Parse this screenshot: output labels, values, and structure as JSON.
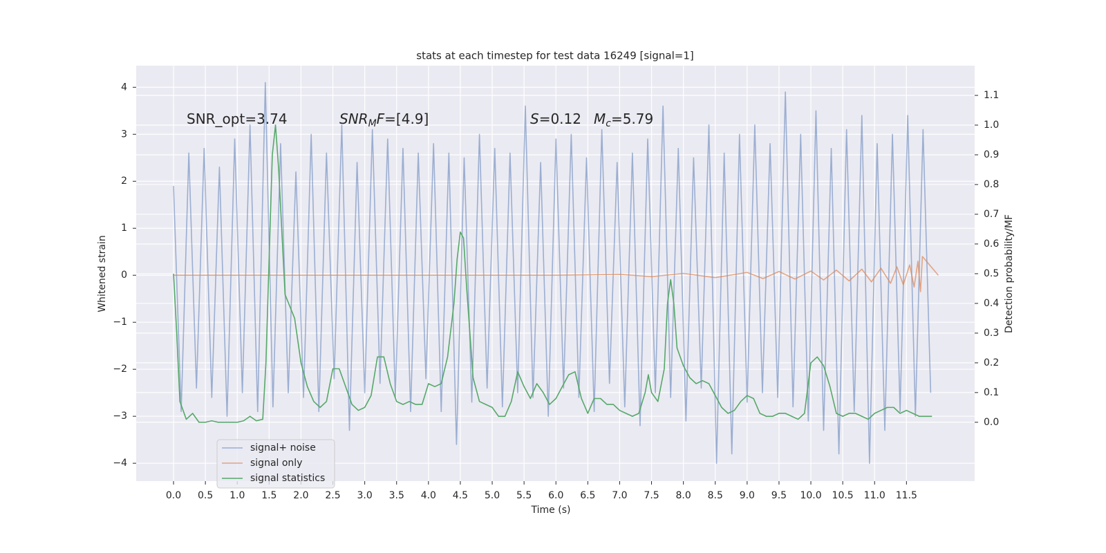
{
  "chart_data": {
    "type": "line",
    "title": "stats at each timestep for test data 16249 [signal=1]",
    "xlabel": "Time (s)",
    "ylabel": "Whitened strain",
    "y2label": "Detection probability/MF",
    "xlim": [
      -0.586,
      12.57
    ],
    "ylim": [
      -4.38,
      4.46
    ],
    "y2lim": [
      -0.198,
      1.2
    ],
    "xticks": [
      {
        "value": 0,
        "label": "0.0"
      },
      0.5,
      {
        "value": 1,
        "label": "1.0"
      },
      1.5,
      {
        "value": 2,
        "label": "2.0"
      },
      2.5,
      {
        "value": 3,
        "label": "3.0"
      },
      3.5,
      {
        "value": 4,
        "label": "4.0"
      },
      4.5,
      {
        "value": 5,
        "label": "5.0"
      },
      5.5,
      {
        "value": 6,
        "label": "6.0"
      },
      6.5,
      {
        "value": 7,
        "label": "7.0"
      },
      7.5,
      {
        "value": 8,
        "label": "8.0"
      },
      8.5,
      {
        "value": 9,
        "label": "9.0"
      },
      9.5,
      {
        "value": 10,
        "label": "10.0"
      },
      10.5,
      {
        "value": 11,
        "label": "11.0"
      },
      11.5
    ],
    "yticks": [
      {
        "value": -4,
        "label": "−4"
      },
      {
        "value": -3,
        "label": "−3"
      },
      {
        "value": -2,
        "label": "−2"
      },
      {
        "value": -1,
        "label": "−1"
      },
      0,
      1,
      2,
      3,
      4
    ],
    "y2ticks": [
      {
        "value": 0,
        "label": "0.0"
      },
      0.1,
      0.2,
      0.3,
      0.4,
      0.5,
      0.6,
      0.7,
      0.8,
      0.9,
      {
        "value": 1,
        "label": "1.0"
      },
      1.1
    ],
    "grid": true,
    "legend": "lower left",
    "annotations": [
      [
        {
          "text": "SNR_opt=3.74"
        }
      ],
      [
        {
          "text": "SNR",
          "style": "italic"
        },
        {
          "text": "M",
          "style": "sub"
        },
        {
          "text": "F",
          "style": "italic"
        },
        {
          "text": "=[4.9]"
        }
      ],
      [
        {
          "text": "S",
          "style": "italic"
        },
        {
          "text": "=0.12"
        }
      ],
      [
        {
          "text": "M",
          "style": "italic"
        },
        {
          "text": "c",
          "style": "sub"
        },
        {
          "text": "=5.79"
        }
      ]
    ],
    "series": [
      {
        "name": "signal+ noise",
        "color": "#4c72b0",
        "opacity": 0.5,
        "x": [
          0,
          0.12,
          0.24,
          0.36,
          0.48,
          0.6,
          0.72,
          0.84,
          0.96,
          1.08,
          1.2,
          1.32,
          1.44,
          1.56,
          1.68,
          1.8,
          1.92,
          2.04,
          2.16,
          2.28,
          2.4,
          2.52,
          2.64,
          2.76,
          2.88,
          3.0,
          3.12,
          3.24,
          3.36,
          3.48,
          3.6,
          3.72,
          3.84,
          3.96,
          4.08,
          4.2,
          4.32,
          4.44,
          4.56,
          4.68,
          4.8,
          4.92,
          5.04,
          5.16,
          5.28,
          5.4,
          5.52,
          5.64,
          5.76,
          5.88,
          6.0,
          6.12,
          6.24,
          6.36,
          6.48,
          6.6,
          6.72,
          6.84,
          6.96,
          7.08,
          7.2,
          7.32,
          7.44,
          7.56,
          7.68,
          7.8,
          7.92,
          8.04,
          8.16,
          8.28,
          8.4,
          8.52,
          8.64,
          8.76,
          8.88,
          9.0,
          9.12,
          9.24,
          9.36,
          9.48,
          9.6,
          9.72,
          9.84,
          9.96,
          10.08,
          10.2,
          10.32,
          10.44,
          10.56,
          10.68,
          10.8,
          10.92,
          11.04,
          11.16,
          11.28,
          11.4,
          11.52,
          11.64,
          11.76,
          11.88
        ],
        "values": [
          1.9,
          -2.9,
          2.6,
          -2.4,
          2.7,
          -2.6,
          2.3,
          -3.0,
          2.9,
          -2.5,
          3.2,
          -2.9,
          4.1,
          -2.8,
          2.8,
          -2.5,
          2.2,
          -2.6,
          3.0,
          -2.9,
          2.6,
          -2.2,
          3.2,
          -3.3,
          2.4,
          -2.5,
          3.1,
          -2.3,
          2.9,
          -2.6,
          2.7,
          -2.9,
          2.6,
          -2.2,
          2.8,
          -2.9,
          2.6,
          -3.6,
          2.5,
          -2.7,
          3.0,
          -2.4,
          2.7,
          -2.8,
          2.6,
          -2.5,
          3.6,
          -2.6,
          2.4,
          -3.0,
          2.9,
          -2.4,
          3.0,
          -2.6,
          2.5,
          -2.9,
          3.1,
          -2.3,
          2.4,
          -2.8,
          2.6,
          -3.2,
          2.9,
          -2.5,
          3.6,
          -2.6,
          2.7,
          -3.1,
          2.5,
          -2.4,
          3.2,
          -4.0,
          2.6,
          -3.8,
          3.0,
          -2.7,
          3.2,
          -2.5,
          2.8,
          -2.6,
          3.9,
          -2.8,
          3.0,
          -3.1,
          3.5,
          -3.3,
          2.7,
          -3.8,
          3.1,
          -2.9,
          3.4,
          -4.0,
          2.8,
          -3.3,
          3.0,
          -2.9,
          3.4,
          -3.0,
          3.1,
          -2.5
        ]
      },
      {
        "name": "signal only",
        "color": "#dd8452",
        "opacity": 0.7,
        "x": [
          0,
          6.0,
          7.0,
          7.5,
          8.0,
          8.5,
          9.0,
          9.25,
          9.5,
          9.75,
          10.0,
          10.2,
          10.4,
          10.6,
          10.8,
          10.95,
          11.1,
          11.25,
          11.35,
          11.45,
          11.55,
          11.62,
          11.68,
          11.72,
          11.75,
          12.0
        ],
        "values": [
          0,
          0,
          0.02,
          -0.03,
          0.04,
          -0.05,
          0.06,
          -0.07,
          0.08,
          -0.08,
          0.09,
          -0.1,
          0.11,
          -0.12,
          0.13,
          -0.14,
          0.15,
          -0.17,
          0.18,
          -0.2,
          0.22,
          -0.25,
          0.3,
          -0.35,
          0.4,
          0
        ]
      },
      {
        "name": "signal statistics",
        "color": "#55a868",
        "axis": "y2",
        "x": [
          0,
          0.05,
          0.1,
          0.2,
          0.3,
          0.4,
          0.5,
          0.6,
          0.7,
          0.8,
          0.9,
          1.0,
          1.1,
          1.2,
          1.3,
          1.4,
          1.45,
          1.55,
          1.6,
          1.65,
          1.75,
          1.9,
          2.0,
          2.1,
          2.2,
          2.3,
          2.4,
          2.5,
          2.6,
          2.7,
          2.8,
          2.9,
          3.0,
          3.1,
          3.2,
          3.3,
          3.4,
          3.5,
          3.6,
          3.7,
          3.8,
          3.9,
          4.0,
          4.1,
          4.2,
          4.3,
          4.4,
          4.45,
          4.5,
          4.55,
          4.6,
          4.7,
          4.8,
          4.9,
          5.0,
          5.1,
          5.2,
          5.3,
          5.4,
          5.5,
          5.6,
          5.7,
          5.8,
          5.9,
          6.0,
          6.1,
          6.2,
          6.3,
          6.4,
          6.5,
          6.6,
          6.7,
          6.8,
          6.9,
          7.0,
          7.1,
          7.2,
          7.3,
          7.4,
          7.45,
          7.5,
          7.6,
          7.7,
          7.75,
          7.8,
          7.85,
          7.9,
          8.0,
          8.1,
          8.2,
          8.3,
          8.4,
          8.5,
          8.6,
          8.7,
          8.8,
          8.9,
          9.0,
          9.1,
          9.2,
          9.3,
          9.4,
          9.5,
          9.6,
          9.7,
          9.8,
          9.9,
          10.0,
          10.1,
          10.2,
          10.3,
          10.4,
          10.5,
          10.6,
          10.7,
          10.8,
          10.9,
          11.0,
          11.1,
          11.2,
          11.3,
          11.4,
          11.5,
          11.6,
          11.7,
          11.8,
          11.9
        ],
        "values": [
          0.5,
          0.3,
          0.07,
          0.01,
          0.03,
          0.0,
          0.0,
          0.005,
          0.0,
          0.0,
          0.0,
          0.0,
          0.005,
          0.02,
          0.005,
          0.01,
          0.2,
          0.9,
          1.0,
          0.85,
          0.43,
          0.35,
          0.2,
          0.12,
          0.07,
          0.05,
          0.07,
          0.18,
          0.18,
          0.12,
          0.06,
          0.04,
          0.05,
          0.09,
          0.22,
          0.22,
          0.13,
          0.07,
          0.06,
          0.07,
          0.06,
          0.06,
          0.13,
          0.12,
          0.13,
          0.22,
          0.4,
          0.55,
          0.64,
          0.62,
          0.45,
          0.15,
          0.07,
          0.06,
          0.05,
          0.02,
          0.02,
          0.07,
          0.17,
          0.12,
          0.08,
          0.13,
          0.1,
          0.06,
          0.08,
          0.12,
          0.16,
          0.17,
          0.08,
          0.03,
          0.08,
          0.08,
          0.06,
          0.06,
          0.04,
          0.03,
          0.02,
          0.03,
          0.1,
          0.16,
          0.1,
          0.07,
          0.18,
          0.4,
          0.48,
          0.4,
          0.25,
          0.19,
          0.15,
          0.13,
          0.14,
          0.13,
          0.09,
          0.05,
          0.03,
          0.04,
          0.07,
          0.09,
          0.08,
          0.03,
          0.02,
          0.02,
          0.03,
          0.03,
          0.02,
          0.01,
          0.03,
          0.2,
          0.22,
          0.19,
          0.12,
          0.03,
          0.02,
          0.03,
          0.03,
          0.02,
          0.01,
          0.03,
          0.04,
          0.05,
          0.05,
          0.03,
          0.04,
          0.03,
          0.02,
          0.02,
          0.02
        ]
      }
    ]
  }
}
